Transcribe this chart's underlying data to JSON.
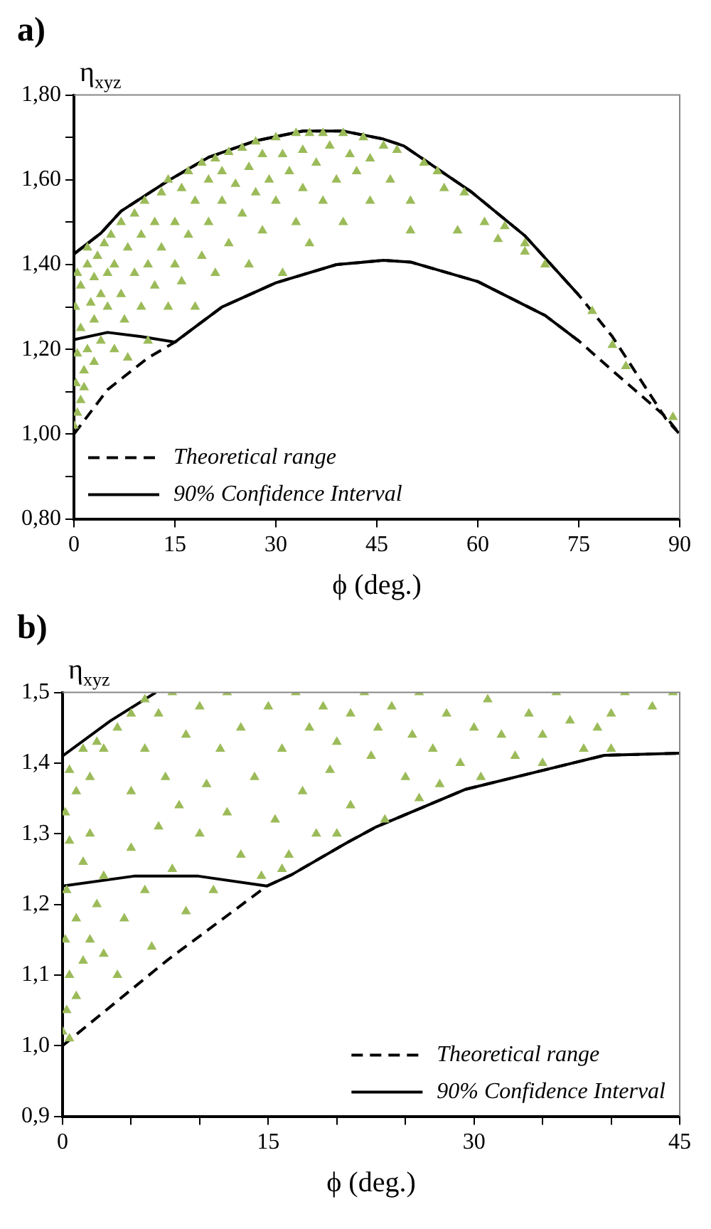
{
  "chart_data": [
    {
      "type": "scatter",
      "title": "a)",
      "xlabel": "ϕ (deg.)",
      "ylabel": "η$_{xyz}$",
      "legend": "bottom left",
      "xlim": [
        0,
        90
      ],
      "xticks": [
        0,
        15,
        30,
        45,
        60,
        75,
        90
      ],
      "ylim": [
        0.8,
        1.8
      ],
      "yticks": [
        {
          "value": 0.8,
          "label": "0,80"
        },
        {
          "value": 0.9,
          "label": null
        },
        {
          "value": 1.0,
          "label": "1,00"
        },
        {
          "value": 1.1,
          "label": null
        },
        {
          "value": 1.2,
          "label": "1,20"
        },
        {
          "value": 1.3,
          "label": null
        },
        {
          "value": 1.4,
          "label": "1,40"
        },
        {
          "value": 1.5,
          "label": null
        },
        {
          "value": 1.6,
          "label": "1,60"
        },
        {
          "value": 1.7,
          "label": null
        },
        {
          "value": 1.8,
          "label": "1,80"
        }
      ],
      "series": [
        {
          "type": "scatter",
          "color": "#9bbb59",
          "marker": "triangle",
          "x": [
            0,
            0.5,
            1,
            0.3,
            1.5,
            0.5,
            2,
            1,
            3,
            0.2,
            2.5,
            1,
            0.5,
            2,
            3,
            4,
            3.5,
            4.5,
            2,
            1.5,
            3,
            4,
            5,
            5,
            5.5,
            6,
            6,
            7,
            7,
            7.5,
            8,
            8,
            9,
            9,
            10,
            10,
            10.5,
            11,
            11,
            12,
            12,
            13,
            13,
            14,
            14,
            15,
            15,
            16,
            16,
            17,
            17,
            18,
            18,
            19,
            19,
            20,
            20,
            21,
            21,
            22,
            22,
            23,
            23,
            24,
            25,
            25,
            26,
            26,
            27,
            27,
            28,
            28,
            29,
            30,
            30,
            31,
            31,
            32,
            33,
            33,
            34,
            34,
            35,
            35,
            36,
            37,
            37,
            38,
            39,
            40,
            40,
            41,
            42,
            43,
            44,
            44,
            46,
            47,
            48,
            50,
            50,
            52,
            54,
            55,
            57,
            58,
            61,
            63,
            64,
            67,
            67,
            70,
            77,
            80,
            82,
            89
          ],
          "values": [
            1.02,
            1.05,
            1.08,
            1.12,
            1.15,
            1.19,
            1.2,
            1.25,
            1.27,
            1.3,
            1.31,
            1.35,
            1.38,
            1.4,
            1.37,
            1.33,
            1.42,
            1.45,
            1.44,
            1.11,
            1.17,
            1.22,
            1.3,
            1.38,
            1.47,
            1.2,
            1.4,
            1.5,
            1.33,
            1.27,
            1.44,
            1.18,
            1.52,
            1.38,
            1.3,
            1.47,
            1.55,
            1.22,
            1.4,
            1.5,
            1.35,
            1.57,
            1.44,
            1.3,
            1.6,
            1.5,
            1.4,
            1.58,
            1.36,
            1.62,
            1.47,
            1.3,
            1.55,
            1.64,
            1.42,
            1.6,
            1.5,
            1.65,
            1.38,
            1.55,
            1.62,
            1.665,
            1.45,
            1.59,
            1.675,
            1.52,
            1.63,
            1.4,
            1.69,
            1.57,
            1.66,
            1.48,
            1.6,
            1.7,
            1.55,
            1.66,
            1.38,
            1.62,
            1.71,
            1.5,
            1.67,
            1.58,
            1.71,
            1.45,
            1.64,
            1.71,
            1.55,
            1.68,
            1.6,
            1.71,
            1.5,
            1.66,
            1.62,
            1.7,
            1.55,
            1.65,
            1.68,
            1.6,
            1.67,
            1.55,
            1.48,
            1.64,
            1.62,
            1.58,
            1.48,
            1.57,
            1.5,
            1.46,
            1.49,
            1.45,
            1.43,
            1.4,
            1.29,
            1.21,
            1.16,
            1.04
          ]
        },
        {
          "type": "line",
          "name": "Theoretical range",
          "color": "#000000",
          "marker": "none",
          "line_style": "dashed",
          "x": [
            0,
            4,
            7,
            14,
            20,
            27,
            34,
            40,
            46,
            49,
            59,
            67,
            75,
            80,
            88,
            90
          ],
          "values": [
            1.425,
            1.474,
            1.526,
            1.598,
            1.653,
            1.692,
            1.715,
            1.715,
            1.696,
            1.68,
            1.572,
            1.468,
            1.328,
            1.23,
            1.035,
            1.0
          ]
        },
        {
          "type": "line",
          "color": "#000000",
          "marker": "none",
          "line_style": "dashed",
          "x": [
            0,
            5,
            11,
            15,
            22,
            30,
            39,
            46,
            50,
            60,
            70,
            75,
            80,
            88,
            90
          ],
          "values": [
            1.0,
            1.105,
            1.18,
            1.217,
            1.3,
            1.357,
            1.4,
            1.41,
            1.406,
            1.36,
            1.28,
            1.22,
            1.15,
            1.04,
            1.0
          ]
        },
        {
          "type": "line",
          "name": "90% Confidence Interval",
          "color": "#000000",
          "marker": "none",
          "line_style": "solid",
          "x": [
            0,
            4,
            7,
            14,
            20,
            27,
            34,
            40,
            46,
            49,
            59,
            67,
            75
          ],
          "values": [
            1.425,
            1.474,
            1.526,
            1.598,
            1.653,
            1.692,
            1.715,
            1.715,
            1.696,
            1.68,
            1.572,
            1.468,
            1.328
          ]
        },
        {
          "type": "line",
          "color": "#000000",
          "marker": "none",
          "line_style": "solid",
          "x": [
            0,
            5,
            10,
            15,
            22,
            30,
            39,
            46,
            50,
            60,
            70,
            75
          ],
          "values": [
            1.223,
            1.24,
            1.23,
            1.217,
            1.3,
            1.357,
            1.4,
            1.41,
            1.406,
            1.36,
            1.28,
            1.22
          ]
        }
      ]
    },
    {
      "type": "scatter",
      "title": "b)",
      "xlabel": "ϕ (deg.)",
      "ylabel": "η$_{xyz}$",
      "legend": "bottom right",
      "xlim": [
        0,
        45
      ],
      "xticks": [
        0,
        {
          "value": 5,
          "label": null
        },
        {
          "value": 10,
          "label": null
        },
        15,
        {
          "value": 20,
          "label": null
        },
        {
          "value": 25,
          "label": null
        },
        30,
        {
          "value": 35,
          "label": null
        },
        {
          "value": 40,
          "label": null
        },
        45
      ],
      "ylim": [
        0.9,
        1.5
      ],
      "yticks": [
        {
          "value": 0.9,
          "label": "0,9"
        },
        {
          "value": 1.0,
          "label": "1,0"
        },
        {
          "value": 1.1,
          "label": "1,1"
        },
        {
          "value": 1.2,
          "label": "1,2"
        },
        {
          "value": 1.3,
          "label": "1,3"
        },
        {
          "value": 1.4,
          "label": "1,4"
        },
        {
          "value": 1.5,
          "label": "1,5"
        }
      ],
      "series": [
        {
          "type": "scatter",
          "color": "#9bbb59",
          "marker": "triangle",
          "x": [
            0,
            0.5,
            0.3,
            1,
            0.5,
            1.5,
            0.2,
            2,
            1,
            3,
            2.5,
            0.3,
            1.5,
            0.5,
            2,
            0.2,
            1,
            0.5,
            2,
            3,
            1.5,
            2.5,
            4,
            5,
            6,
            3,
            4,
            4.5,
            5,
            5,
            6,
            6,
            6.5,
            7,
            7,
            7.5,
            8,
            8,
            8.5,
            9,
            9,
            10,
            10,
            10.5,
            11,
            11.5,
            12,
            12,
            13,
            13,
            14,
            14.5,
            15,
            15.5,
            16,
            16.5,
            17,
            17.5,
            18,
            18.5,
            19,
            19.5,
            20,
            21,
            21,
            22,
            22.5,
            23,
            23.5,
            24,
            25,
            25.5,
            26,
            27,
            27.5,
            28,
            29,
            30,
            30.5,
            31,
            32,
            33,
            34,
            35,
            36,
            37,
            38,
            39,
            40,
            41,
            43,
            44.5,
            40,
            35,
            26,
            20,
            16
          ],
          "values": [
            1.02,
            1.01,
            1.05,
            1.07,
            1.1,
            1.12,
            1.15,
            1.15,
            1.18,
            1.13,
            1.2,
            1.22,
            1.26,
            1.29,
            1.3,
            1.33,
            1.36,
            1.39,
            1.38,
            1.42,
            1.42,
            1.43,
            1.45,
            1.47,
            1.49,
            1.24,
            1.1,
            1.18,
            1.28,
            1.36,
            1.42,
            1.22,
            1.14,
            1.31,
            1.47,
            1.38,
            1.25,
            1.5,
            1.34,
            1.44,
            1.19,
            1.3,
            1.48,
            1.37,
            1.22,
            1.42,
            1.33,
            1.5,
            1.27,
            1.45,
            1.38,
            1.24,
            1.48,
            1.32,
            1.42,
            1.27,
            1.5,
            1.36,
            1.45,
            1.3,
            1.48,
            1.39,
            1.43,
            1.34,
            1.47,
            1.5,
            1.41,
            1.45,
            1.32,
            1.48,
            1.38,
            1.44,
            1.5,
            1.42,
            1.37,
            1.47,
            1.4,
            1.45,
            1.38,
            1.49,
            1.44,
            1.41,
            1.47,
            1.44,
            1.5,
            1.46,
            1.42,
            1.45,
            1.47,
            1.5,
            1.48,
            1.5,
            1.42,
            1.4,
            1.35,
            1.3,
            1.25
          ]
        },
        {
          "type": "line",
          "name": "Theoretical range",
          "color": "#000000",
          "marker": "none",
          "line_style": "dashed",
          "x": [
            0,
            7.7,
            14.9,
            16.7,
            20.7,
            22.9,
            29.4,
            39.5,
            45
          ],
          "values": [
            1.0,
            1.122,
            1.226,
            1.242,
            1.287,
            1.31,
            1.363,
            1.411,
            1.414
          ]
        },
        {
          "type": "line",
          "name": "90% Confidence Interval",
          "color": "#000000",
          "marker": "none",
          "line_style": "solid",
          "x": [
            0,
            3.5,
            6.8
          ],
          "values": [
            1.41,
            1.46,
            1.5
          ]
        },
        {
          "type": "line",
          "color": "#000000",
          "marker": "none",
          "line_style": "solid",
          "x": [
            0,
            5.2,
            9.9,
            14.9,
            16.7,
            20.7,
            22.9,
            29.4,
            39.5,
            45
          ],
          "values": [
            1.226,
            1.24,
            1.24,
            1.226,
            1.242,
            1.287,
            1.31,
            1.363,
            1.411,
            1.414
          ]
        }
      ]
    }
  ]
}
